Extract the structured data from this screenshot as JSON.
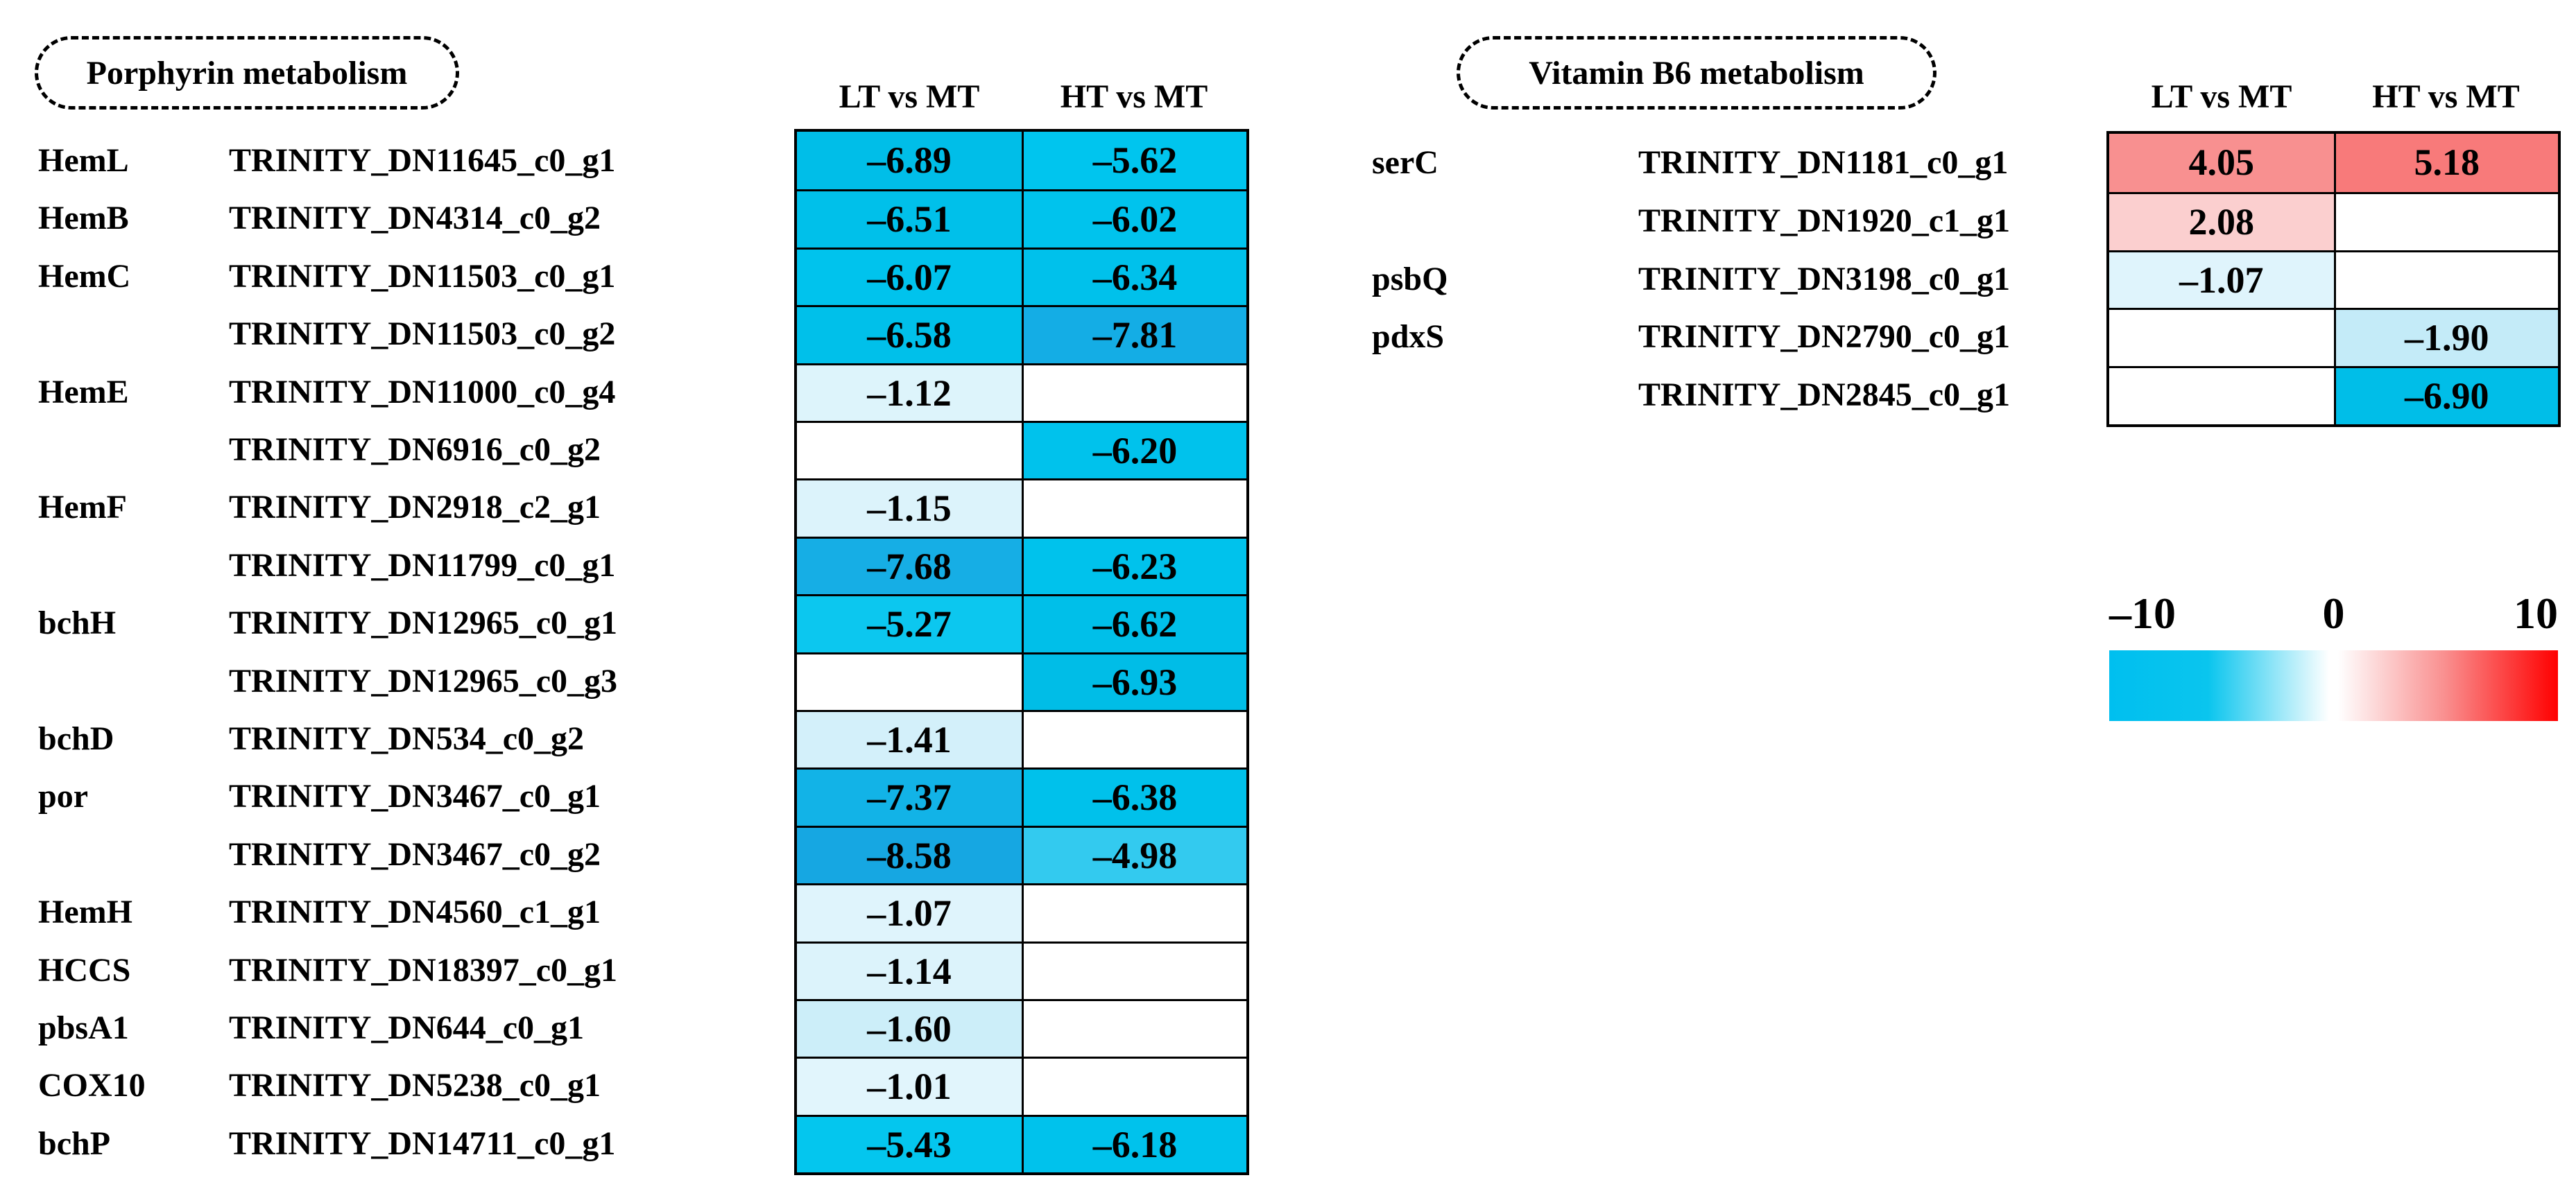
{
  "figure": {
    "background": "#FFFFFF"
  },
  "panels": [
    {
      "title": "Porphyrin metabolism",
      "column_headers": [
        "LT vs MT",
        "HT vs MT"
      ],
      "rows": [
        {
          "gene": "HemL",
          "transcript": "TRINITY_DN11645_c0_g1",
          "cells": [
            {
              "display": "–6.89",
              "color": "#00BEE8"
            },
            {
              "display": "–5.62",
              "color": "#00C5EE"
            }
          ]
        },
        {
          "gene": "HemB",
          "transcript": "TRINITY_DN4314_c0_g2",
          "cells": [
            {
              "display": "–6.51",
              "color": "#00C0EA"
            },
            {
              "display": "–6.02",
              "color": "#00C3ED"
            }
          ]
        },
        {
          "gene": "HemC",
          "transcript": "TRINITY_DN11503_c0_g1",
          "cells": [
            {
              "display": "–6.07",
              "color": "#00C3ED"
            },
            {
              "display": "–6.34",
              "color": "#00C1EB"
            }
          ]
        },
        {
          "gene": "",
          "transcript": "TRINITY_DN11503_c0_g2",
          "cells": [
            {
              "display": "–6.58",
              "color": "#00C0EA"
            },
            {
              "display": "–7.81",
              "color": "#14ADE5"
            }
          ]
        },
        {
          "gene": "HemE",
          "transcript": "TRINITY_DN11000_c0_g4",
          "cells": [
            {
              "display": "–1.12",
              "color": "#DDF4FB"
            },
            null
          ]
        },
        {
          "gene": "",
          "transcript": "TRINITY_DN6916_c0_g2",
          "cells": [
            null,
            {
              "display": "–6.20",
              "color": "#00C2EC"
            }
          ]
        },
        {
          "gene": "HemF",
          "transcript": "TRINITY_DN2918_c2_g1",
          "cells": [
            {
              "display": "–1.15",
              "color": "#DCF3FB"
            },
            null
          ]
        },
        {
          "gene": "",
          "transcript": "TRINITY_DN11799_c0_g1",
          "cells": [
            {
              "display": "–7.68",
              "color": "#16AEE5"
            },
            {
              "display": "–6.23",
              "color": "#00C2EC"
            }
          ]
        },
        {
          "gene": "bchH",
          "transcript": "TRINITY_DN12965_c0_g1",
          "cells": [
            {
              "display": "–5.27",
              "color": "#0CC7EF"
            },
            {
              "display": "–6.62",
              "color": "#00BFE9"
            }
          ]
        },
        {
          "gene": "",
          "transcript": "TRINITY_DN12965_c0_g3",
          "cells": [
            null,
            {
              "display": "–6.93",
              "color": "#00BDE7"
            }
          ]
        },
        {
          "gene": "bchD",
          "transcript": "TRINITY_DN534_c0_g2",
          "cells": [
            {
              "display": "–1.41",
              "color": "#D3F0FA"
            },
            null
          ]
        },
        {
          "gene": "por",
          "transcript": "TRINITY_DN3467_c0_g1",
          "cells": [
            {
              "display": "–7.37",
              "color": "#12B3E7"
            },
            {
              "display": "–6.38",
              "color": "#00C1EB"
            }
          ]
        },
        {
          "gene": "",
          "transcript": "TRINITY_DN3467_c0_g2",
          "cells": [
            {
              "display": "–8.58",
              "color": "#16A7E2"
            },
            {
              "display": "–4.98",
              "color": "#33CAEF"
            }
          ]
        },
        {
          "gene": "HemH",
          "transcript": "TRINITY_DN4560_c1_g1",
          "cells": [
            {
              "display": "–1.07",
              "color": "#DFF4FC"
            },
            null
          ]
        },
        {
          "gene": "HCCS",
          "transcript": "TRINITY_DN18397_c0_g1",
          "cells": [
            {
              "display": "–1.14",
              "color": "#DCF3FB"
            },
            null
          ]
        },
        {
          "gene": "pbsA1",
          "transcript": "TRINITY_DN644_c0_g1",
          "cells": [
            {
              "display": "–1.60",
              "color": "#CCEEF9"
            },
            null
          ]
        },
        {
          "gene": "COX10",
          "transcript": "TRINITY_DN5238_c0_g1",
          "cells": [
            {
              "display": "–1.01",
              "color": "#E1F5FC"
            },
            null
          ]
        },
        {
          "gene": "bchP",
          "transcript": "TRINITY_DN14711_c0_g1",
          "cells": [
            {
              "display": "–5.43",
              "color": "#04C6EE"
            },
            {
              "display": "–6.18",
              "color": "#00C2EC"
            }
          ]
        }
      ]
    },
    {
      "title": "Vitamin B6 metabolism",
      "column_headers": [
        "LT vs MT",
        "HT vs MT"
      ],
      "rows": [
        {
          "gene": "serC",
          "transcript": "TRINITY_DN1181_c0_g1",
          "cells": [
            {
              "display": "4.05",
              "color": "#F89090"
            },
            {
              "display": "5.18",
              "color": "#F87A7A"
            }
          ]
        },
        {
          "gene": "",
          "transcript": "TRINITY_DN1920_c1_g1",
          "cells": [
            {
              "display": "2.08",
              "color": "#FBCFCF"
            },
            null
          ]
        },
        {
          "gene": "psbQ",
          "transcript": "TRINITY_DN3198_c0_g1",
          "cells": [
            {
              "display": "–1.07",
              "color": "#DFF4FC"
            },
            null
          ]
        },
        {
          "gene": "pdxS",
          "transcript": "TRINITY_DN2790_c0_g1",
          "cells": [
            null,
            {
              "display": "–1.90",
              "color": "#C4EBF8"
            }
          ]
        },
        {
          "gene": "",
          "transcript": "TRINITY_DN2845_c0_g1",
          "cells": [
            null,
            {
              "display": "–6.90",
              "color": "#00BEE8"
            }
          ]
        }
      ]
    }
  ],
  "legend": {
    "min_label": "–10",
    "mid_label": "0",
    "max_label": "10",
    "gradient_stops": [
      "#00BFEF",
      "#0AC5EE",
      "#FFFFFF",
      "#F98E8E",
      "#FF0000"
    ]
  },
  "chart_data": [
    {
      "type": "heatmap",
      "title": "Porphyrin metabolism",
      "columns": [
        "LT vs MT",
        "HT vs MT"
      ],
      "genes": [
        "HemL",
        "HemB",
        "HemC",
        "",
        "HemE",
        "",
        "HemF",
        "",
        "bchH",
        "",
        "bchD",
        "por",
        "",
        "HemH",
        "HCCS",
        "pbsA1",
        "COX10",
        "bchP"
      ],
      "transcripts": [
        "TRINITY_DN11645_c0_g1",
        "TRINITY_DN4314_c0_g2",
        "TRINITY_DN11503_c0_g1",
        "TRINITY_DN11503_c0_g2",
        "TRINITY_DN11000_c0_g4",
        "TRINITY_DN6916_c0_g2",
        "TRINITY_DN2918_c2_g1",
        "TRINITY_DN11799_c0_g1",
        "TRINITY_DN12965_c0_g1",
        "TRINITY_DN12965_c0_g3",
        "TRINITY_DN534_c0_g2",
        "TRINITY_DN3467_c0_g1",
        "TRINITY_DN3467_c0_g2",
        "TRINITY_DN4560_c1_g1",
        "TRINITY_DN18397_c0_g1",
        "TRINITY_DN644_c0_g1",
        "TRINITY_DN5238_c0_g1",
        "TRINITY_DN14711_c0_g1"
      ],
      "values": [
        [
          -6.89,
          -5.62
        ],
        [
          -6.51,
          -6.02
        ],
        [
          -6.07,
          -6.34
        ],
        [
          -6.58,
          -7.81
        ],
        [
          -1.12,
          null
        ],
        [
          null,
          -6.2
        ],
        [
          -1.15,
          null
        ],
        [
          -7.68,
          -6.23
        ],
        [
          -5.27,
          -6.62
        ],
        [
          null,
          -6.93
        ],
        [
          -1.41,
          null
        ],
        [
          -7.37,
          -6.38
        ],
        [
          -8.58,
          -4.98
        ],
        [
          -1.07,
          null
        ],
        [
          -1.14,
          null
        ],
        [
          -1.6,
          null
        ],
        [
          -1.01,
          null
        ],
        [
          -5.43,
          -6.18
        ]
      ],
      "scale": {
        "min": -10,
        "mid": 0,
        "max": 10,
        "colormap": "cyan-white-red"
      }
    },
    {
      "type": "heatmap",
      "title": "Vitamin B6 metabolism",
      "columns": [
        "LT vs MT",
        "HT vs MT"
      ],
      "genes": [
        "serC",
        "",
        "psbQ",
        "pdxS",
        ""
      ],
      "transcripts": [
        "TRINITY_DN1181_c0_g1",
        "TRINITY_DN1920_c1_g1",
        "TRINITY_DN3198_c0_g1",
        "TRINITY_DN2790_c0_g1",
        "TRINITY_DN2845_c0_g1"
      ],
      "values": [
        [
          4.05,
          5.18
        ],
        [
          2.08,
          null
        ],
        [
          -1.07,
          null
        ],
        [
          null,
          -1.9
        ],
        [
          null,
          -6.9
        ]
      ],
      "scale": {
        "min": -10,
        "mid": 0,
        "max": 10,
        "colormap": "cyan-white-red"
      }
    }
  ]
}
